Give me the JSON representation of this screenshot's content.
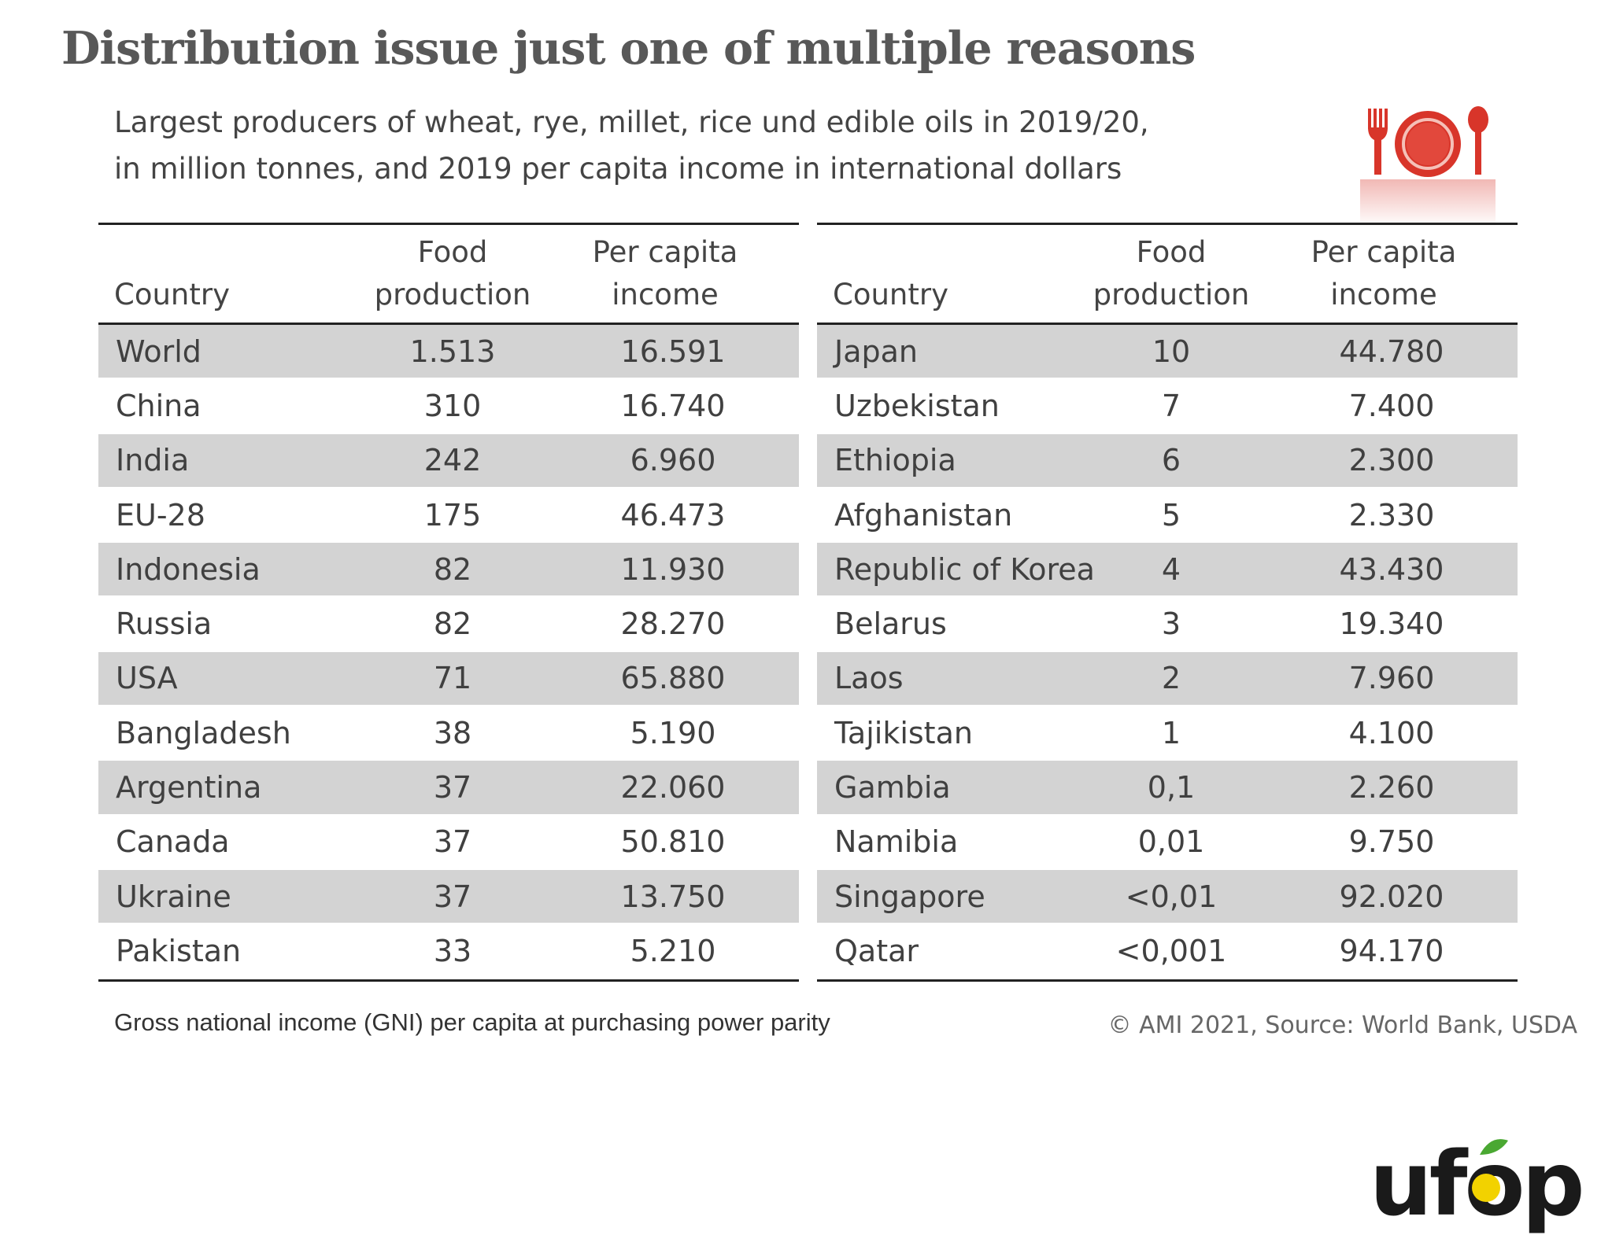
{
  "title": "Distribution issue just one of multiple reasons",
  "subtitle_line1": "Largest producers of wheat, rye, millet, rice und edible oils in 2019/20,",
  "subtitle_line2": "in million tonnes, and 2019 per capita income in international dollars",
  "icons": {
    "plate": "plate-fork-spoon-icon",
    "logo": "ufop-logo"
  },
  "colors": {
    "icon_red": "#d8352a",
    "row_shade": "#d3d3d3",
    "logo_dark": "#1a1a1a",
    "logo_yellow": "#f2d200",
    "logo_green": "#4aa832"
  },
  "logo_text": "ufop",
  "headers": {
    "country": "Country",
    "food_line1": "Food",
    "food_line2": "production",
    "income_line1": "Per capita",
    "income_line2": "income"
  },
  "chart_data": {
    "type": "table",
    "columns": [
      "Country",
      "Food production",
      "Per capita income"
    ],
    "left_rows": [
      [
        "World",
        "1.513",
        "16.591"
      ],
      [
        "China",
        "310",
        "16.740"
      ],
      [
        "India",
        "242",
        "6.960"
      ],
      [
        "EU-28",
        "175",
        "46.473"
      ],
      [
        "Indonesia",
        "82",
        "11.930"
      ],
      [
        "Russia",
        "82",
        "28.270"
      ],
      [
        "USA",
        "71",
        "65.880"
      ],
      [
        "Bangladesh",
        "38",
        "5.190"
      ],
      [
        "Argentina",
        "37",
        "22.060"
      ],
      [
        "Canada",
        "37",
        "50.810"
      ],
      [
        "Ukraine",
        "37",
        "13.750"
      ],
      [
        "Pakistan",
        "33",
        "5.210"
      ]
    ],
    "right_rows": [
      [
        "Japan",
        "10",
        "44.780"
      ],
      [
        "Uzbekistan",
        "7",
        "7.400"
      ],
      [
        "Ethiopia",
        "6",
        "2.300"
      ],
      [
        "Afghanistan",
        "5",
        "2.330"
      ],
      [
        "Republic of Korea",
        "4",
        "43.430"
      ],
      [
        "Belarus",
        "3",
        "19.340"
      ],
      [
        "Laos",
        "2",
        "7.960"
      ],
      [
        "Tajikistan",
        "1",
        "4.100"
      ],
      [
        "Gambia",
        "0,1",
        "2.260"
      ],
      [
        "Namibia",
        "0,01",
        "9.750"
      ],
      [
        "Singapore",
        "<0,01",
        "92.020"
      ],
      [
        "Qatar",
        "<0,001",
        "94.170"
      ]
    ]
  },
  "footnote": "Gross national income (GNI) per capita at purchasing power parity",
  "source": "© AMI 2021, Source: World Bank, USDA"
}
